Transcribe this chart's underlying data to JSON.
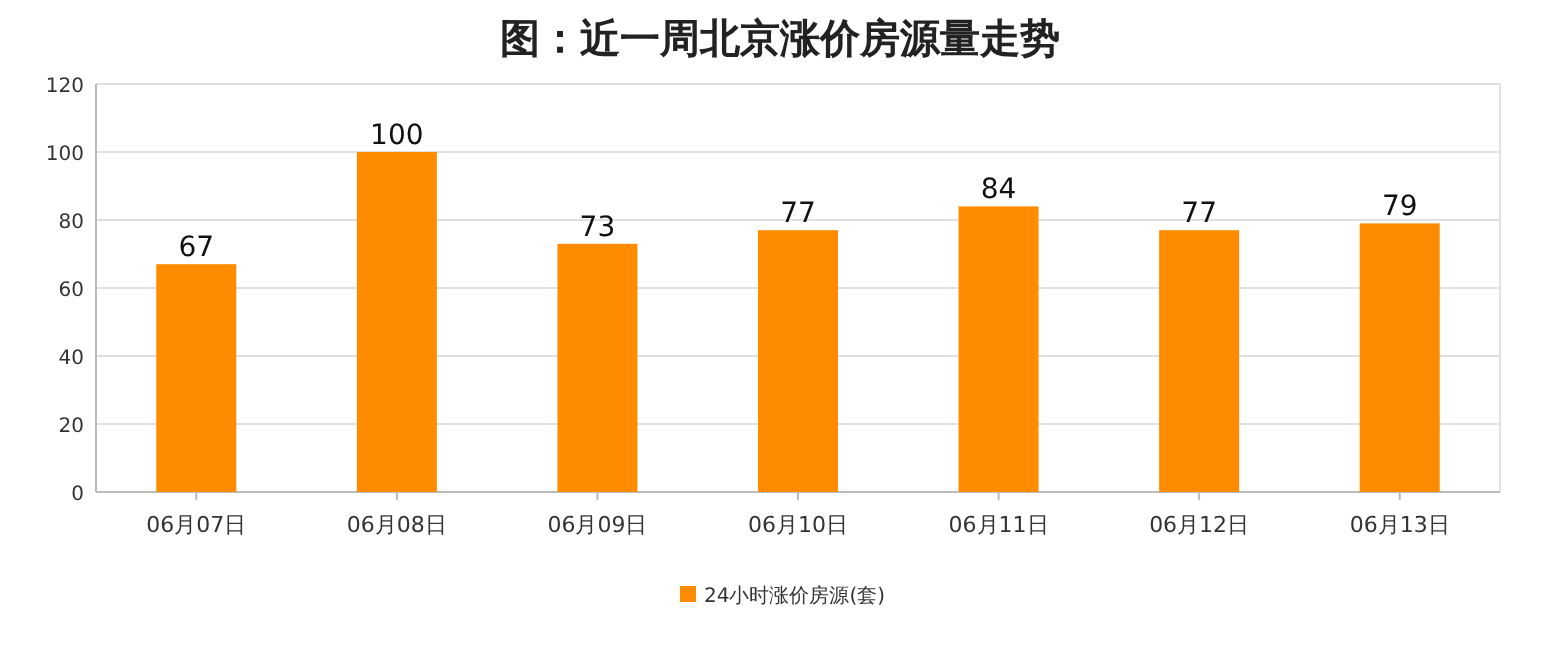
{
  "chart_data": {
    "type": "bar",
    "title": "图：近一周北京涨价房源量走势",
    "categories": [
      "06月07日",
      "06月08日",
      "06月09日",
      "06月10日",
      "06月11日",
      "06月12日",
      "06月13日"
    ],
    "series": [
      {
        "name": "24小时涨价房源(套)",
        "color": "#ff8c00",
        "values": [
          67,
          100,
          73,
          77,
          84,
          77,
          79
        ]
      }
    ],
    "ylim": [
      0,
      120
    ],
    "yticks": [
      0,
      20,
      40,
      60,
      80,
      100,
      120
    ],
    "grid": "y",
    "legend": "bottom",
    "data_labels": true
  }
}
